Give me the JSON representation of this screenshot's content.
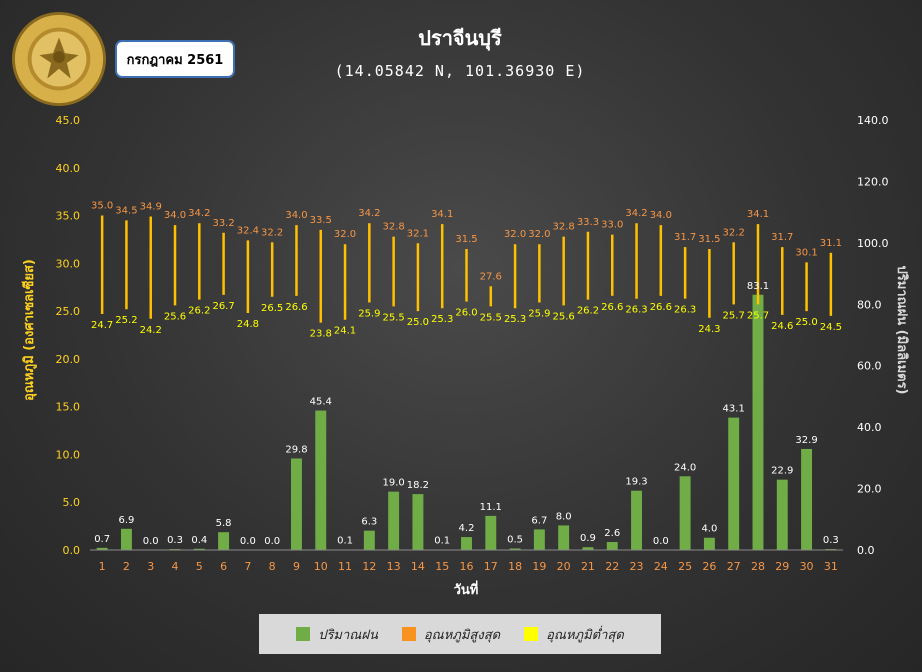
{
  "header": {
    "title": "ปราจีนบุรี",
    "subtitle": "(14.05842 N, 101.36930 E)",
    "month_label": "กรกฎาคม 2561",
    "logo_text": "METEOROLOGICAL DEPARTMENT"
  },
  "colors": {
    "rain": "#70ad47",
    "tmax_label": "#f79646",
    "tmin_label": "#ffff00",
    "range_line": "#ffc000",
    "axis_left_title": "#ffd21f",
    "axis_right_title": "#d9d9d9",
    "x_tick": "#f79646"
  },
  "chart_data": {
    "type": "bar",
    "x": [
      1,
      2,
      3,
      4,
      5,
      6,
      7,
      8,
      9,
      10,
      11,
      12,
      13,
      14,
      15,
      16,
      17,
      18,
      19,
      20,
      21,
      22,
      23,
      24,
      25,
      26,
      27,
      28,
      29,
      30,
      31
    ],
    "xlabel": "วันที่",
    "ylabel_left": "อุณหภูมิ (องศาเซลเซียส)",
    "ylabel_right": "ปริมาณฝน (มิลลิเมตร)",
    "ylim_left": [
      0,
      45
    ],
    "ylim_right": [
      0,
      140
    ],
    "yticks_left": [
      "0.0",
      "5.0",
      "10.0",
      "15.0",
      "20.0",
      "25.0",
      "30.0",
      "35.0",
      "40.0",
      "45.0"
    ],
    "yticks_right": [
      "0.0",
      "20.0",
      "40.0",
      "60.0",
      "80.0",
      "100.0",
      "120.0",
      "140.0"
    ],
    "series": [
      {
        "name": "ปริมาณฝน",
        "axis": "right",
        "type": "bar",
        "values": [
          0.7,
          6.9,
          0.0,
          0.3,
          0.4,
          5.8,
          0.0,
          0.0,
          29.8,
          45.4,
          0.1,
          6.3,
          19.0,
          18.2,
          0.1,
          4.2,
          11.1,
          0.5,
          6.7,
          8.0,
          0.9,
          2.6,
          19.3,
          0.0,
          24.0,
          4.0,
          43.1,
          83.1,
          22.9,
          32.9,
          0.3
        ]
      },
      {
        "name": "อุณหภูมิสูงสุด",
        "axis": "left",
        "type": "range-high",
        "values": [
          35.0,
          34.5,
          34.9,
          34.0,
          34.2,
          33.2,
          32.4,
          32.2,
          34.0,
          33.5,
          32.0,
          34.2,
          32.8,
          32.1,
          34.1,
          31.5,
          27.6,
          32.0,
          32.0,
          32.8,
          33.3,
          33.0,
          34.2,
          34.0,
          31.7,
          31.5,
          32.2,
          34.1,
          31.7,
          30.1,
          31.1
        ]
      },
      {
        "name": "อุณหภูมิต่ำสุด",
        "axis": "left",
        "type": "range-low",
        "values": [
          24.7,
          25.2,
          24.2,
          25.6,
          26.2,
          26.7,
          24.8,
          26.5,
          26.6,
          23.8,
          24.1,
          25.9,
          25.5,
          25.0,
          25.3,
          26.0,
          25.5,
          25.3,
          25.9,
          25.6,
          26.2,
          26.6,
          26.3,
          26.6,
          26.3,
          24.3,
          25.7,
          25.7,
          24.6,
          25.0,
          24.5
        ]
      }
    ],
    "legend": "bottom",
    "grid": false
  }
}
